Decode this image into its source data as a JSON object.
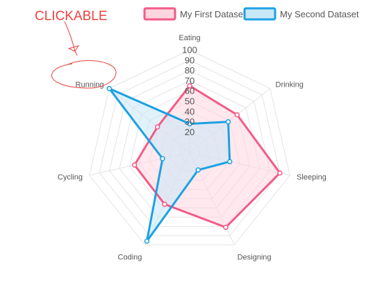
{
  "annotation": {
    "text": "CLICKABLE",
    "color": "#e8433f"
  },
  "chart_data": {
    "type": "radar",
    "labels": [
      "Eating",
      "Drinking",
      "Sleeping",
      "Designing",
      "Coding",
      "Cycling",
      "Running"
    ],
    "rlim": [
      0,
      100
    ],
    "ticks": [
      20,
      30,
      40,
      50,
      60,
      70,
      80,
      90,
      100
    ],
    "legend_position": "top",
    "grid": true,
    "series": [
      {
        "name": "My First Dataset",
        "values": [
          65,
          59,
          90,
          81,
          56,
          55,
          40
        ],
        "border_color": "#f25a86",
        "fill_color": "#ffd6e0"
      },
      {
        "name": "My Second Dataset",
        "values": [
          28,
          48,
          40,
          19,
          96,
          27,
          100
        ],
        "border_color": "#1ba1e2",
        "fill_color": "#c9e8f7"
      }
    ]
  }
}
